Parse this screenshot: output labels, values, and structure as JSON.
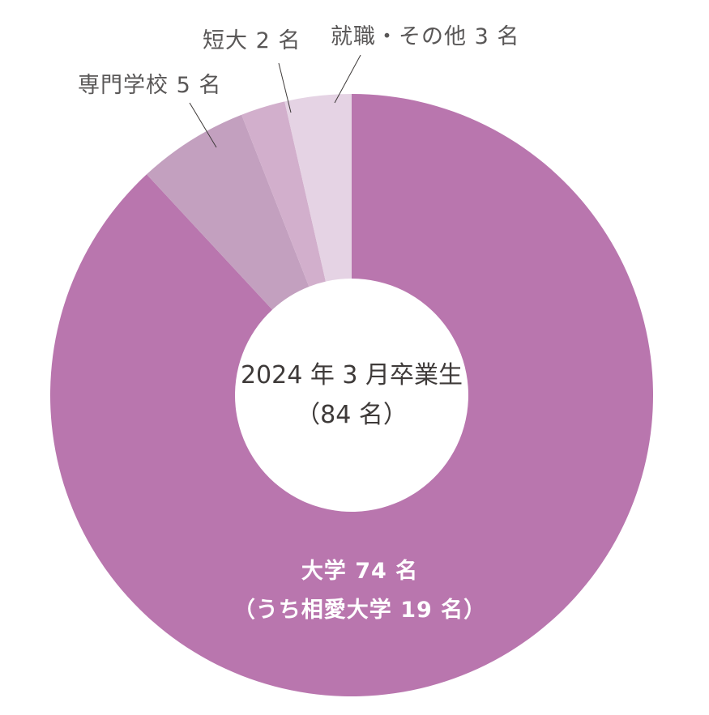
{
  "chart_data": {
    "type": "pie",
    "variant": "donut",
    "title": "2024年3月卒業生（84名）",
    "center_label": {
      "line1": "2024 年 3 月卒業生",
      "line2": "（84 名）"
    },
    "total": 84,
    "slices": [
      {
        "name": "大学",
        "value": 74,
        "label": "大学 74 名",
        "sublabel": "（うち相愛大学 19 名）",
        "color": "#b976ae"
      },
      {
        "name": "専門学校",
        "value": 5,
        "label": "専門学校 5 名",
        "color": "#c3a0bf"
      },
      {
        "name": "短大",
        "value": 2,
        "label": "短大 2 名",
        "color": "#d2afcc"
      },
      {
        "name": "就職・その他",
        "value": 3,
        "label": "就職・その他 3 名",
        "color": "#e5d3e4"
      }
    ],
    "start_angle": "top, clockwise",
    "legend": "none (callout labels)"
  },
  "labels": {
    "university": "大学 74 名",
    "university_sub": "（うち相愛大学 19 名）",
    "vocational": "専門学校 5 名",
    "junior_college": "短大 2 名",
    "employment_other": "就職・その他 3 名",
    "center_line1": "2024 年 3 月卒業生",
    "center_line2": "（84 名）"
  }
}
